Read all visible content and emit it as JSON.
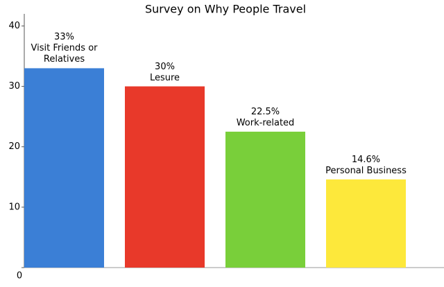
{
  "chart_data": {
    "type": "bar",
    "title": "Survey on Why People Travel",
    "categories": [
      "Visit Friends or Relatives",
      "Lesure",
      "Work-related",
      "Personal Business"
    ],
    "values": [
      33,
      30,
      22.5,
      14.6
    ],
    "value_labels": [
      "33%",
      "30%",
      "22.5%",
      "14.6%"
    ],
    "colors": [
      "#3b7fd6",
      "#e8392a",
      "#79cf3a",
      "#fde83b"
    ],
    "ylim": [
      0,
      42
    ],
    "yticks": [
      0,
      10,
      20,
      30,
      40
    ],
    "grid": false
  }
}
